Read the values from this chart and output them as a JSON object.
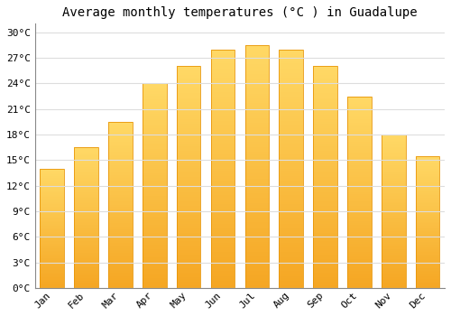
{
  "title": "Average monthly temperatures (°C ) in Guadalupe",
  "months": [
    "Jan",
    "Feb",
    "Mar",
    "Apr",
    "May",
    "Jun",
    "Jul",
    "Aug",
    "Sep",
    "Oct",
    "Nov",
    "Dec"
  ],
  "values": [
    14,
    16.5,
    19.5,
    24,
    26,
    28,
    28.5,
    28,
    26,
    22.5,
    18,
    15.5
  ],
  "bar_color_bottom": "#F5A623",
  "bar_color_top": "#FFD966",
  "bar_edge_color": "#E8960A",
  "background_color": "#FFFFFF",
  "ylim": [
    0,
    31
  ],
  "yticks": [
    0,
    3,
    6,
    9,
    12,
    15,
    18,
    21,
    24,
    27,
    30
  ],
  "ytick_labels": [
    "0°C",
    "3°C",
    "6°C",
    "9°C",
    "12°C",
    "15°C",
    "18°C",
    "21°C",
    "24°C",
    "27°C",
    "30°C"
  ],
  "title_fontsize": 10,
  "tick_fontsize": 8,
  "grid_color": "#dddddd",
  "font_family": "monospace",
  "bar_width": 0.7
}
